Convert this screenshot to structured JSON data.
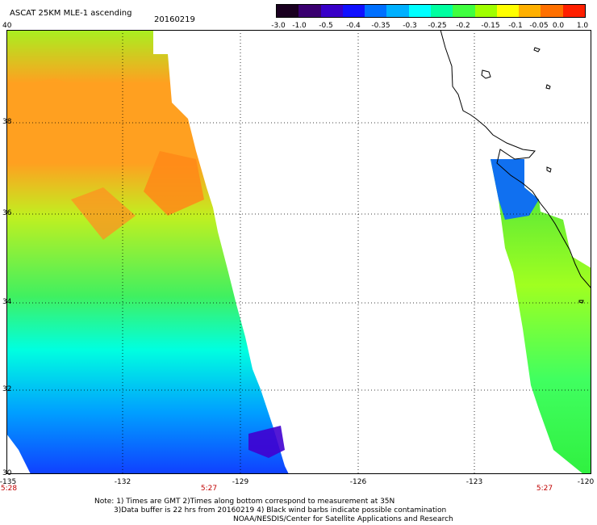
{
  "header": {
    "title": "ASCAT 25KM MLE-1 ascending",
    "date": "20160219"
  },
  "colorbar": {
    "ticks": [
      "-3.0",
      "-1.0",
      "-0.5",
      "-0.4",
      "-0.35",
      "-0.3",
      "-0.25",
      "-0.2",
      "-0.15",
      "-0.1",
      "-0.05",
      "0.0",
      "1.0"
    ],
    "colors": [
      "#1a0020",
      "#3a0070",
      "#3800c8",
      "#1010ff",
      "#0070ff",
      "#00b0ff",
      "#00ffff",
      "#00ffa0",
      "#40ff40",
      "#a0ff00",
      "#ffff00",
      "#ffb000",
      "#ff7000",
      "#ff2000"
    ]
  },
  "map": {
    "lat_labels": [
      "40",
      "38",
      "36",
      "34",
      "32",
      "30"
    ],
    "lon_labels": [
      "-135",
      "-132",
      "-129",
      "-126",
      "-123",
      "-120"
    ],
    "time_labels": [
      "5:28",
      "5:27",
      "5:27"
    ]
  },
  "notes": {
    "line1": "Note: 1) Times are GMT 2)Times along bottom correspond to measurement at 35N",
    "line2": "3)Data buffer is 22 hrs from 20160219 4) Black wind barbs indicate possible contamination",
    "line3": "NOAA/NESDIS/Center for Satellite Applications and Research"
  }
}
